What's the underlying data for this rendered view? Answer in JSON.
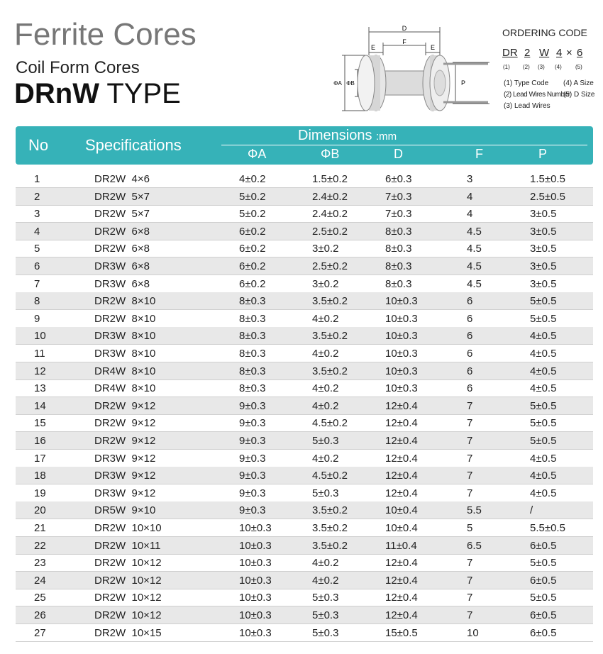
{
  "header": {
    "title": "Ferrite Cores",
    "subtitle": "Coil Form Cores",
    "type_bold": "DRnW",
    "type_rest": "TYPE"
  },
  "diagram": {
    "labels": [
      "D",
      "F",
      "E",
      "E",
      "ΦA",
      "ΦB",
      "P"
    ]
  },
  "ordering": {
    "title": "ORDERING CODE",
    "code": [
      "DR",
      "2",
      "W",
      "4",
      "×",
      "6"
    ],
    "indices": [
      "(1)",
      "(2)",
      "(3)",
      "(4)",
      "(5)"
    ],
    "legend": [
      "(1) Type Code",
      "(4) A Size",
      "(2) Lead Wires Number",
      "(5) D Size",
      "(3) Lead Wires"
    ]
  },
  "table": {
    "headers": [
      "No",
      "Specifications",
      "Dimensions",
      ":mm"
    ],
    "columns": [
      "ΦA",
      "ΦB",
      "D",
      "F",
      "P"
    ],
    "rows": [
      [
        1,
        "DR2W  4×6",
        "4±0.2",
        "1.5±0.2",
        "6±0.3",
        "3",
        "1.5±0.5"
      ],
      [
        2,
        "DR2W  5×7",
        "5±0.2",
        "2.4±0.2",
        "7±0.3",
        "4",
        "2.5±0.5"
      ],
      [
        3,
        "DR2W  5×7",
        "5±0.2",
        "2.4±0.2",
        "7±0.3",
        "4",
        "3±0.5"
      ],
      [
        4,
        "DR2W  6×8",
        "6±0.2",
        "2.5±0.2",
        "8±0.3",
        "4.5",
        "3±0.5"
      ],
      [
        5,
        "DR2W  6×8",
        "6±0.2",
        "3±0.2",
        "8±0.3",
        "4.5",
        "3±0.5"
      ],
      [
        6,
        "DR3W  6×8",
        "6±0.2",
        "2.5±0.2",
        "8±0.3",
        "4.5",
        "3±0.5"
      ],
      [
        7,
        "DR3W  6×8",
        "6±0.2",
        "3±0.2",
        "8±0.3",
        "4.5",
        "3±0.5"
      ],
      [
        8,
        "DR2W  8×10",
        "8±0.3",
        "3.5±0.2",
        "10±0.3",
        "6",
        "5±0.5"
      ],
      [
        9,
        "DR2W  8×10",
        "8±0.3",
        "4±0.2",
        "10±0.3",
        "6",
        "5±0.5"
      ],
      [
        10,
        "DR3W  8×10",
        "8±0.3",
        "3.5±0.2",
        "10±0.3",
        "6",
        "4±0.5"
      ],
      [
        11,
        "DR3W  8×10",
        "8±0.3",
        "4±0.2",
        "10±0.3",
        "6",
        "4±0.5"
      ],
      [
        12,
        "DR4W  8×10",
        "8±0.3",
        "3.5±0.2",
        "10±0.3",
        "6",
        "4±0.5"
      ],
      [
        13,
        "DR4W  8×10",
        "8±0.3",
        "4±0.2",
        "10±0.3",
        "6",
        "4±0.5"
      ],
      [
        14,
        "DR2W  9×12",
        "9±0.3",
        "4±0.2",
        "12±0.4",
        "7",
        "5±0.5"
      ],
      [
        15,
        "DR2W  9×12",
        "9±0.3",
        "4.5±0.2",
        "12±0.4",
        "7",
        "5±0.5"
      ],
      [
        16,
        "DR2W  9×12",
        "9±0.3",
        "5±0.3",
        "12±0.4",
        "7",
        "5±0.5"
      ],
      [
        17,
        "DR3W  9×12",
        "9±0.3",
        "4±0.2",
        "12±0.4",
        "7",
        "4±0.5"
      ],
      [
        18,
        "DR3W  9×12",
        "9±0.3",
        "4.5±0.2",
        "12±0.4",
        "7",
        "4±0.5"
      ],
      [
        19,
        "DR3W  9×12",
        "9±0.3",
        "5±0.3",
        "12±0.4",
        "7",
        "4±0.5"
      ],
      [
        20,
        "DR5W  9×10",
        "9±0.3",
        "3.5±0.2",
        "10±0.4",
        "5.5",
        "/"
      ],
      [
        21,
        "DR2W  10×10",
        "10±0.3",
        "3.5±0.2",
        "10±0.4",
        "5",
        "5.5±0.5"
      ],
      [
        22,
        "DR2W  10×11",
        "10±0.3",
        "3.5±0.2",
        "11±0.4",
        "6.5",
        "6±0.5"
      ],
      [
        23,
        "DR2W  10×12",
        "10±0.3",
        "4±0.2",
        "12±0.4",
        "7",
        "5±0.5"
      ],
      [
        24,
        "DR2W  10×12",
        "10±0.3",
        "4±0.2",
        "12±0.4",
        "7",
        "6±0.5"
      ],
      [
        25,
        "DR2W  10×12",
        "10±0.3",
        "5±0.3",
        "12±0.4",
        "7",
        "5±0.5"
      ],
      [
        26,
        "DR2W  10×12",
        "10±0.3",
        "5±0.3",
        "12±0.4",
        "7",
        "6±0.5"
      ],
      [
        27,
        "DR2W  10×15",
        "10±0.3",
        "5±0.3",
        "15±0.5",
        "10",
        "6±0.5"
      ]
    ]
  }
}
